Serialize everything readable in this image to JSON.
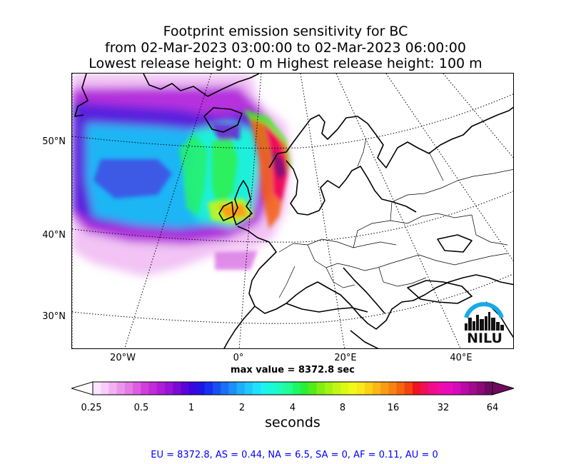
{
  "title": {
    "line1": "Footprint emission sensitivity for BC",
    "line2": "from 02-Mar-2023 03:00:00 to 02-Mar-2023 06:00:00",
    "line3": "Lowest release height: 0 m      Highest release height: 100 m"
  },
  "map": {
    "lat_labels": [
      "50°N",
      "40°N",
      "30°N"
    ],
    "lon_labels": [
      "20°W",
      "0°",
      "20°E",
      "40°E"
    ],
    "max_value_text": "max value = 8372.8 sec"
  },
  "colorbar": {
    "tick_labels": [
      "0.25",
      "0.5",
      "1",
      "2",
      "4",
      "8",
      "16",
      "32",
      "64"
    ],
    "units": "seconds",
    "colors": [
      "#fde6fd",
      "#f9cdf9",
      "#f2b1f3",
      "#eb96ec",
      "#e47be6",
      "#dc5ee0",
      "#d13fdb",
      "#c32bd9",
      "#b01dd9",
      "#9913d7",
      "#7c0ad3",
      "#5c05d6",
      "#3a06dd",
      "#1f14e6",
      "#1530ef",
      "#174ff4",
      "#1a6ff7",
      "#1c8ff9",
      "#1eaefb",
      "#1fc9fd",
      "#1de2fd",
      "#1cf2ef",
      "#1cf8d6",
      "#1efbb7",
      "#21fc93",
      "#1cf766",
      "#2bef36",
      "#56eb18",
      "#7eef13",
      "#a2f312",
      "#c2f713",
      "#dcf915",
      "#f2f91a",
      "#fae91a",
      "#fbd116",
      "#fbb714",
      "#fa9c13",
      "#f88212",
      "#f5640f",
      "#f2420d",
      "#f0131f",
      "#f00e5a",
      "#f00d87",
      "#ef0ca8",
      "#e80bbd",
      "#d60aba",
      "#bd0aa6",
      "#a40a8e",
      "#8b0a76",
      "#6f0a5e"
    ]
  },
  "region_values": "EU = 8372.8,  AS = 0.44,  NA = 6.5,  SA = 0,  AF = 0.11,  AU = 0",
  "logo": {
    "text": "NILU",
    "accent": "#19a9e6"
  }
}
